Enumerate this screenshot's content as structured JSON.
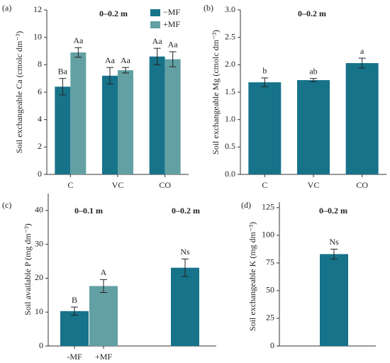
{
  "chart_data": [
    {
      "type": "bar",
      "panel_label": "(a)",
      "annotations": [
        "0–0.2 m"
      ],
      "y_label": "Soil exchangeable Ca (cmolc dm⁻³)",
      "categories": [
        "C",
        "VC",
        "CO"
      ],
      "ylim": [
        0,
        12
      ],
      "yticks": [
        0,
        2,
        4,
        6,
        8,
        10,
        12
      ],
      "legend": true,
      "series": [
        {
          "name": "−MF",
          "color": "#17738a",
          "values": [
            6.4,
            7.2,
            8.6
          ],
          "errors": [
            0.6,
            0.6,
            0.6
          ],
          "labels": [
            "Ba",
            "Aa",
            "Aa"
          ]
        },
        {
          "name": "+MF",
          "color": "#63a0a3",
          "values": [
            8.9,
            7.6,
            8.4
          ],
          "errors": [
            0.35,
            0.2,
            0.55
          ],
          "labels": [
            "Aa",
            "Aa",
            "Aa"
          ]
        }
      ]
    },
    {
      "type": "bar",
      "panel_label": "(b)",
      "annotations": [
        "0–0.2 m"
      ],
      "y_label": "Soil exchangeable Mg (cmolc dm⁻³)",
      "categories": [
        "C",
        "VC",
        "CO"
      ],
      "ylim": [
        0,
        3
      ],
      "yticks": [
        {
          "value": 0,
          "label": "0.0"
        },
        {
          "value": 0.5,
          "label": "0.5"
        },
        {
          "value": 1,
          "label": "1.0"
        },
        {
          "value": 1.5,
          "label": "1.5"
        },
        {
          "value": 2,
          "label": "2.0"
        },
        {
          "value": 2.5,
          "label": "2.5"
        },
        {
          "value": 3,
          "label": "3.0"
        }
      ],
      "series": [
        {
          "color": "#17738a",
          "values": [
            1.68,
            1.72,
            2.03
          ],
          "errors": [
            0.08,
            0.03,
            0.09
          ],
          "labels": [
            "b",
            "ab",
            "a"
          ]
        }
      ]
    },
    {
      "type": "bar",
      "panel_label": "(c)",
      "annotations": [
        "0–0.1 m",
        "0–0.2 m"
      ],
      "y_label": "Soil available P (mg dm⁻³)",
      "categories": [
        "-MF",
        "+MF",
        null
      ],
      "ylim": [
        0,
        45
      ],
      "yticks": [
        0,
        10,
        20,
        30,
        40
      ],
      "series": [
        {
          "colors": [
            "#17738a",
            "#63a0a3",
            "#17738a"
          ],
          "values": [
            10.3,
            17.7,
            23.1
          ],
          "errors": [
            1.2,
            1.9,
            2.6
          ],
          "labels": [
            "B",
            "A",
            "Ns"
          ]
        }
      ]
    },
    {
      "type": "bar",
      "panel_label": "(d)",
      "annotations": [
        "0–0.2 m"
      ],
      "y_label": "Soil exchangeable K (mg dm⁻³)",
      "categories": [
        null
      ],
      "ylim": [
        0,
        130
      ],
      "yticks": [
        0,
        25,
        50,
        75,
        100,
        125
      ],
      "series": [
        {
          "color": "#17738a",
          "values": [
            83
          ],
          "errors": [
            4.5
          ],
          "labels": [
            "Ns"
          ]
        }
      ]
    }
  ]
}
